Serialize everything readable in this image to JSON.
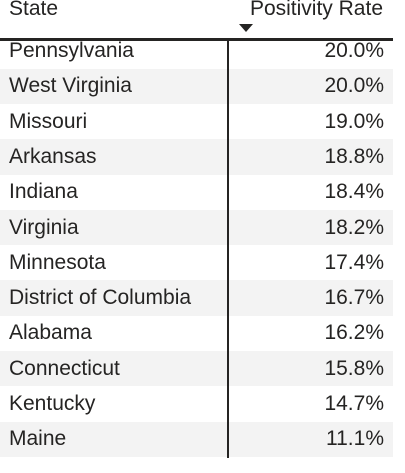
{
  "table": {
    "header": [
      "State",
      "Positivity Rate"
    ],
    "rows": [
      [
        "Pennsylvania",
        "20.0%"
      ],
      [
        "West Virginia",
        "20.0%"
      ],
      [
        "Missouri",
        "19.0%"
      ],
      [
        "Arkansas",
        "18.8%"
      ],
      [
        "Indiana",
        "18.4%"
      ],
      [
        "Virginia",
        "18.2%"
      ],
      [
        "Minnesota",
        "17.4%"
      ],
      [
        "District of Columbia",
        "16.7%"
      ],
      [
        "Alabama",
        "16.2%"
      ],
      [
        "Connecticut",
        "15.8%"
      ],
      [
        "Kentucky",
        "14.7%"
      ],
      [
        "Maine",
        "11.1%"
      ]
    ]
  }
}
